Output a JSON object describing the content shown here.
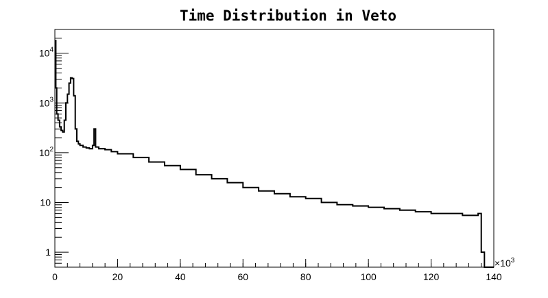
{
  "chart_data": {
    "type": "histogram",
    "title": "Time Distribution in Veto",
    "xlabel": "",
    "ylabel": "",
    "x_multiplier_label": "×10",
    "x_multiplier_exponent": "3",
    "xlim": [
      0,
      140
    ],
    "ylim": [
      0.5,
      30000
    ],
    "yscale": "log",
    "grid": false,
    "legend": "none",
    "x_ticks": [
      0,
      20,
      40,
      60,
      80,
      100,
      120,
      140
    ],
    "y_ticks": [
      {
        "value": 1,
        "label": "1",
        "sup": ""
      },
      {
        "value": 10,
        "label": "10",
        "sup": ""
      },
      {
        "value": 100,
        "label": "10",
        "sup": "2"
      },
      {
        "value": 1000,
        "label": "10",
        "sup": "3"
      },
      {
        "value": 10000,
        "label": "10",
        "sup": "4"
      }
    ],
    "line_color": "#000000",
    "x": [
      0,
      0.3,
      0.6,
      1.0,
      1.5,
      2.0,
      2.5,
      3.0,
      3.5,
      4.0,
      4.5,
      5.0,
      5.5,
      6.0,
      6.5,
      7.0,
      7.5,
      8.0,
      9.0,
      10.0,
      11.0,
      12.0,
      12.5,
      13.0,
      14.0,
      16.0,
      18.0,
      20.0,
      25.0,
      30.0,
      35.0,
      40.0,
      45.0,
      50.0,
      55.0,
      60.0,
      65.0,
      70.0,
      75.0,
      80.0,
      85.0,
      90.0,
      95.0,
      100.0,
      105.0,
      110.0,
      115.0,
      120.0,
      125.0,
      130.0,
      135.0,
      136.0,
      137.0,
      138.0,
      139.0
    ],
    "values": [
      18000,
      2000,
      600,
      450,
      330,
      280,
      260,
      450,
      1000,
      1500,
      2500,
      3200,
      3100,
      1400,
      300,
      170,
      150,
      140,
      130,
      125,
      120,
      140,
      300,
      130,
      120,
      115,
      105,
      95,
      80,
      65,
      55,
      46,
      36,
      30,
      25,
      20,
      17,
      15,
      13,
      12,
      10,
      9,
      8.5,
      8,
      7.5,
      7,
      6.5,
      6,
      6,
      5.5,
      6,
      1,
      0.5,
      0.5,
      0.5
    ]
  }
}
